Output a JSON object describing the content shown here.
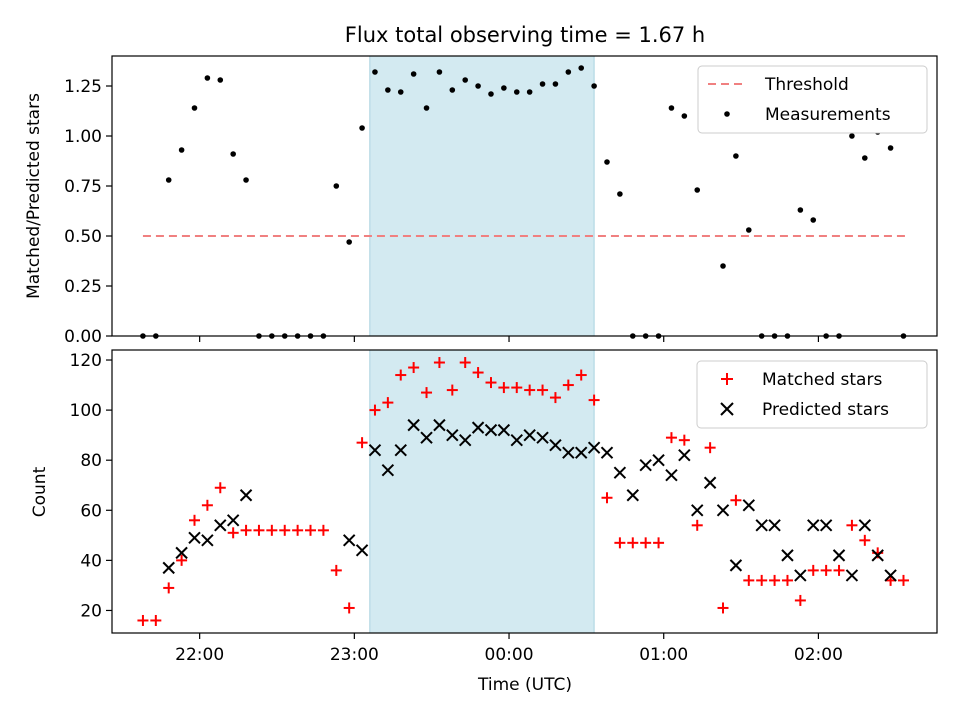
{
  "chart_data": [
    {
      "type": "scatter",
      "title": "Flux total observing time = 1.67 h",
      "xlabel": "",
      "ylabel": "Matched/Predicted stars",
      "xlim": [
        "21:26",
        "02:46"
      ],
      "ylim": [
        0,
        1.4
      ],
      "yticks": [
        "0.00",
        "0.25",
        "0.50",
        "0.75",
        "1.00",
        "1.25"
      ],
      "shaded_interval": {
        "from": "23:06",
        "to": "00:33",
        "color": "#d3eaf1"
      },
      "legend": {
        "position": "top-right",
        "entries": [
          "Threshold",
          "Measurements"
        ]
      },
      "series": [
        {
          "name": "Threshold",
          "style": "dashed-line",
          "color": "#f08080",
          "x": [
            "21:38",
            "02:34"
          ],
          "y": [
            0.5,
            0.5
          ]
        },
        {
          "name": "Measurements",
          "style": "dot",
          "color": "#000000",
          "x": [
            "21:38",
            "21:43",
            "21:48",
            "21:53",
            "21:58",
            "22:03",
            "22:08",
            "22:13",
            "22:18",
            "22:23",
            "22:28",
            "22:33",
            "22:38",
            "22:43",
            "22:48",
            "22:53",
            "22:58",
            "23:03",
            "23:08",
            "23:13",
            "23:18",
            "23:23",
            "23:28",
            "23:33",
            "23:38",
            "23:43",
            "23:48",
            "23:53",
            "23:58",
            "00:03",
            "00:08",
            "00:13",
            "00:18",
            "00:23",
            "00:28",
            "00:33",
            "00:38",
            "00:43",
            "00:48",
            "00:53",
            "00:58",
            "01:03",
            "01:08",
            "01:13",
            "01:18",
            "01:23",
            "01:28",
            "01:33",
            "01:38",
            "01:43",
            "01:48",
            "01:53",
            "01:58",
            "02:03",
            "02:08",
            "02:13",
            "02:18",
            "02:23",
            "02:28",
            "02:33"
          ],
          "y": [
            0,
            0,
            0.78,
            0.93,
            1.14,
            1.29,
            1.28,
            0.91,
            0.78,
            0,
            0,
            0,
            0,
            0,
            0,
            0.75,
            0.47,
            1.04,
            1.32,
            1.23,
            1.22,
            1.31,
            1.14,
            1.32,
            1.23,
            1.28,
            1.25,
            1.21,
            1.24,
            1.22,
            1.22,
            1.26,
            1.26,
            1.32,
            1.34,
            1.25,
            0.87,
            0.71,
            0,
            0,
            0,
            1.14,
            1.1,
            0.73,
            1.04,
            0.35,
            0.9,
            0.53,
            0,
            0,
            0,
            0.63,
            0.58,
            0,
            0,
            1.0,
            0.89,
            1.02,
            0.94,
            0
          ]
        }
      ]
    },
    {
      "type": "scatter",
      "title": "",
      "xlabel": "Time (UTC)",
      "ylabel": "Count",
      "xlim": [
        "21:26",
        "02:46"
      ],
      "ylim": [
        11,
        124
      ],
      "xticks": [
        "22:00",
        "23:00",
        "00:00",
        "01:00",
        "02:00"
      ],
      "yticks": [
        "20",
        "40",
        "60",
        "80",
        "100",
        "120"
      ],
      "shaded_interval": {
        "from": "23:06",
        "to": "00:33",
        "color": "#d3eaf1"
      },
      "legend": {
        "position": "top-right",
        "entries": [
          "Matched stars",
          "Predicted stars"
        ]
      },
      "series": [
        {
          "name": "Matched stars",
          "marker": "+",
          "color": "#ff0000",
          "x": [
            "21:38",
            "21:43",
            "21:48",
            "21:53",
            "21:58",
            "22:03",
            "22:08",
            "22:13",
            "22:18",
            "22:23",
            "22:28",
            "22:33",
            "22:38",
            "22:43",
            "22:48",
            "22:53",
            "22:58",
            "23:03",
            "23:08",
            "23:13",
            "23:18",
            "23:23",
            "23:28",
            "23:33",
            "23:38",
            "23:43",
            "23:48",
            "23:53",
            "23:58",
            "00:03",
            "00:08",
            "00:13",
            "00:18",
            "00:23",
            "00:28",
            "00:33",
            "00:38",
            "00:43",
            "00:48",
            "00:53",
            "00:58",
            "01:03",
            "01:08",
            "01:13",
            "01:18",
            "01:23",
            "01:28",
            "01:33",
            "01:38",
            "01:43",
            "01:48",
            "01:53",
            "01:58",
            "02:03",
            "02:08",
            "02:13",
            "02:18",
            "02:23",
            "02:28",
            "02:33"
          ],
          "y": [
            16,
            16,
            29,
            40,
            56,
            62,
            69,
            51,
            52,
            52,
            52,
            52,
            52,
            52,
            52,
            36,
            21,
            87,
            100,
            103,
            114,
            117,
            107,
            119,
            108,
            119,
            115,
            111,
            109,
            109,
            108,
            108,
            105,
            110,
            114,
            104,
            65,
            47,
            47,
            47,
            47,
            89,
            88,
            54,
            85,
            21,
            64,
            32,
            32,
            32,
            32,
            24,
            36,
            36,
            36,
            54,
            48,
            43,
            32,
            32
          ]
        },
        {
          "name": "Predicted stars",
          "marker": "x",
          "color": "#000000",
          "x": [
            "21:48",
            "21:53",
            "21:58",
            "22:03",
            "22:08",
            "22:13",
            "22:18",
            "22:58",
            "23:03",
            "23:08",
            "23:13",
            "23:18",
            "23:23",
            "23:28",
            "23:33",
            "23:38",
            "23:43",
            "23:48",
            "23:53",
            "23:58",
            "00:03",
            "00:08",
            "00:13",
            "00:18",
            "00:23",
            "00:28",
            "00:33",
            "00:38",
            "00:43",
            "00:48",
            "00:53",
            "00:58",
            "01:03",
            "01:08",
            "01:13",
            "01:18",
            "01:23",
            "01:28",
            "01:33",
            "01:38",
            "01:43",
            "01:48",
            "01:53",
            "01:58",
            "02:03",
            "02:08",
            "02:13",
            "02:18",
            "02:23",
            "02:28"
          ],
          "y": [
            37,
            43,
            49,
            48,
            54,
            56,
            66,
            48,
            44,
            84,
            76,
            84,
            94,
            89,
            94,
            90,
            88,
            93,
            92,
            92,
            88,
            90,
            89,
            86,
            83,
            83,
            85,
            83,
            75,
            66,
            78,
            80,
            74,
            82,
            60,
            71,
            60,
            38,
            62,
            54,
            54,
            42,
            34,
            54,
            54,
            42,
            34,
            54,
            42,
            34
          ]
        }
      ]
    }
  ]
}
